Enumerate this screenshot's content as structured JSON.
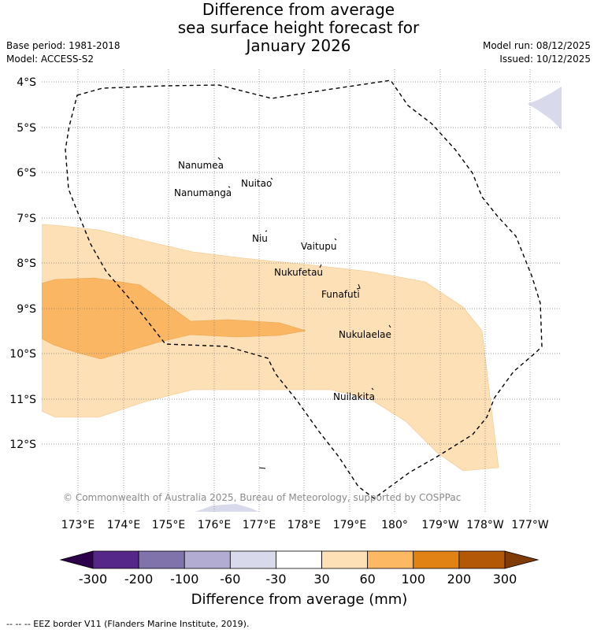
{
  "title": {
    "line1": "Difference from average",
    "line2": "sea surface height forecast for",
    "line3": "January 2026"
  },
  "meta": {
    "base_period": "Base period: 1981-2018",
    "model": "Model: ACCESS-S2",
    "model_run": "Model run: 08/12/2025",
    "issued": "Issued: 10/12/2025"
  },
  "map": {
    "lat_labels": [
      "4°S",
      "5°S",
      "6°S",
      "7°S",
      "8°S",
      "9°S",
      "10°S",
      "11°S",
      "12°S"
    ],
    "lon_labels": [
      "173°E",
      "174°E",
      "175°E",
      "176°E",
      "177°E",
      "178°E",
      "179°E",
      "180°",
      "179°W",
      "178°W",
      "177°W"
    ],
    "islands": [
      "Nanumea",
      "Nuitao",
      "Nanumanga",
      "Niu",
      "Vaitupu",
      "Nukufetau",
      "Funafuti",
      "Nukulaelae",
      "Nuilakita"
    ],
    "copyright": "© Commonwealth of Australia 2025, Bureau of Meteorology, supported by COSPPac",
    "anomaly_colors": {
      "30_to_60": "#fde0b6",
      "60_to_100": "#fbb663",
      "minus60_to_minus30": "#d9d9ec"
    },
    "eez_style": "dashed"
  },
  "colorbar": {
    "ticks": [
      "-300",
      "-200",
      "-100",
      "-60",
      "-30",
      "30",
      "60",
      "100",
      "200",
      "300"
    ],
    "colors": [
      "#542788",
      "#8073ac",
      "#b2abd2",
      "#d8daeb",
      "#ffffff",
      "#fee0b6",
      "#fdb863",
      "#e08214",
      "#b35806"
    ],
    "under_color": "#2d004b",
    "over_color": "#7f3b08",
    "title": "Difference from average (mm)"
  },
  "footer": {
    "eez_note": "--  --  -- EEZ border V11 (Flanders Marine Institute, 2019)."
  }
}
